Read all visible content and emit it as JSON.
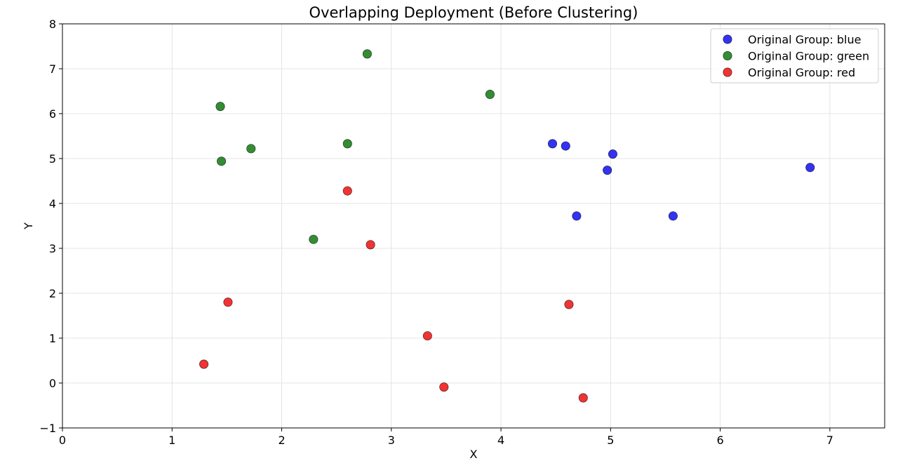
{
  "chart_data": {
    "type": "scatter",
    "title": "Overlapping Deployment (Before Clustering)",
    "xlabel": "X",
    "ylabel": "Y",
    "xlim": [
      0,
      7.5
    ],
    "ylim": [
      -1,
      8
    ],
    "xticks": [
      0,
      1,
      2,
      3,
      4,
      5,
      6,
      7
    ],
    "yticks": [
      -1,
      0,
      1,
      2,
      3,
      4,
      5,
      6,
      7,
      8
    ],
    "x_tick_labels": [
      "0",
      "1",
      "2",
      "3",
      "4",
      "5",
      "6",
      "7"
    ],
    "y_tick_labels": [
      "−1",
      "0",
      "1",
      "2",
      "3",
      "4",
      "5",
      "6",
      "7",
      "8"
    ],
    "grid": true,
    "legend_position": "top-right",
    "series": [
      {
        "name": "Original Group: blue",
        "color": "#0000ee",
        "points": [
          [
            4.47,
            5.33
          ],
          [
            4.59,
            5.28
          ],
          [
            5.02,
            5.1
          ],
          [
            4.97,
            4.74
          ],
          [
            4.69,
            3.72
          ],
          [
            5.57,
            3.72
          ],
          [
            6.82,
            4.8
          ]
        ]
      },
      {
        "name": "Original Group: green",
        "color": "#007000",
        "points": [
          [
            2.78,
            7.33
          ],
          [
            3.9,
            6.43
          ],
          [
            1.44,
            6.16
          ],
          [
            1.72,
            5.22
          ],
          [
            1.45,
            4.94
          ],
          [
            2.6,
            5.33
          ],
          [
            2.29,
            3.2
          ]
        ]
      },
      {
        "name": "Original Group: red",
        "color": "#ee0000",
        "points": [
          [
            2.6,
            4.28
          ],
          [
            2.81,
            3.08
          ],
          [
            1.51,
            1.8
          ],
          [
            4.62,
            1.75
          ],
          [
            1.29,
            0.42
          ],
          [
            3.33,
            1.05
          ],
          [
            3.48,
            -0.09
          ],
          [
            4.75,
            -0.33
          ]
        ]
      }
    ]
  }
}
